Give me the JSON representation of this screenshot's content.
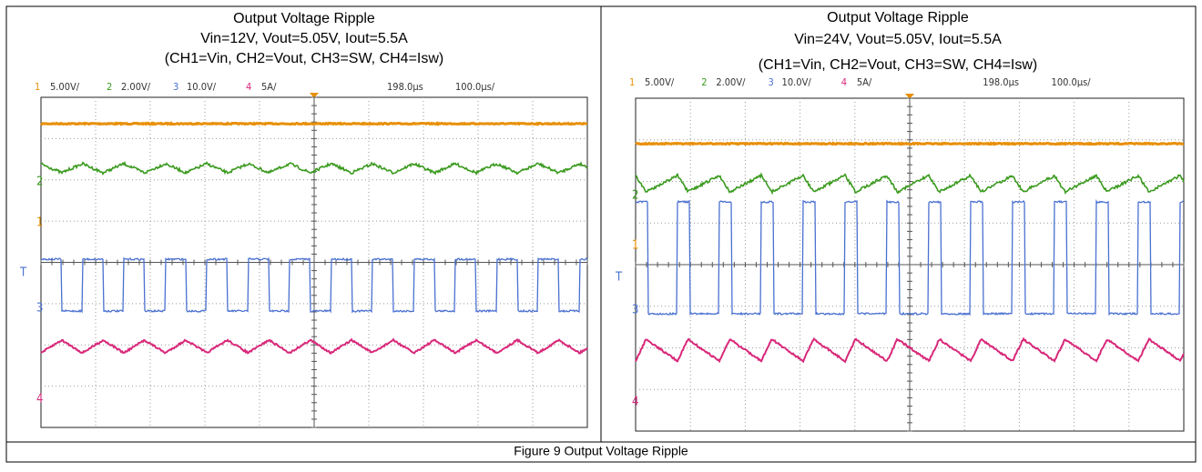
{
  "panels": [
    {
      "title": [
        "Output Voltage Ripple",
        "Vin=12V, Vout=5.05V, Iout=5.5A",
        "(CH1=Vin, CH2=Vout, CH3=SW, CH4=Isw)"
      ],
      "scope_labels": [
        "1",
        "5.00V/",
        "2",
        "2.00V/",
        "3",
        "10.0V/",
        "4",
        "5A/",
        "198.0µs",
        "100.0µs/"
      ],
      "markers": [
        "2",
        "1",
        "T",
        "3",
        "4"
      ]
    },
    {
      "title": [
        "Output Voltage Ripple",
        "Vin=24V, Vout=5.05V, Iout=5.5A",
        "(CH1=Vin, CH2=Vout, CH3=SW, CH4=Isw)"
      ],
      "scope_labels": [
        "1",
        "5.00V/",
        "2",
        "2.00V/",
        "3",
        "10.0V/",
        "4",
        "5A/",
        "198.0µs",
        "100.0µs/"
      ],
      "markers": [
        "2",
        "1",
        "T",
        "3",
        "4"
      ]
    }
  ],
  "caption": "Figure 9 Output Voltage Ripple"
}
